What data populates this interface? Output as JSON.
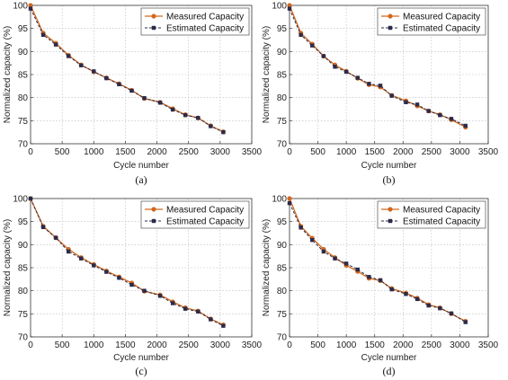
{
  "colors": {
    "measured": "#D2691E",
    "estimated": "#2B2B4B",
    "grid": "#B8B8B8"
  },
  "chart_data": [
    {
      "type": "line",
      "panel_label": "(a)",
      "xlabel": "Cycle number",
      "ylabel": "Normalized capacity (%)",
      "xlim": [
        0,
        3500
      ],
      "ylim": [
        70,
        100
      ],
      "xticks": [
        0,
        500,
        1000,
        1500,
        2000,
        2500,
        3000,
        3500
      ],
      "yticks": [
        70,
        75,
        80,
        85,
        90,
        95,
        100
      ],
      "grid": true,
      "legend": "top-right",
      "series": [
        {
          "name": "Measured Capacity",
          "marker": "circle",
          "linestyle": "solid",
          "x": [
            0,
            200,
            400,
            600,
            800,
            1000,
            1200,
            1400,
            1600,
            1800,
            2050,
            2250,
            2450,
            2650,
            2850,
            3050
          ],
          "y": [
            100,
            94,
            91.8,
            89.2,
            87.1,
            85.6,
            84.3,
            83,
            81.6,
            79.8,
            79,
            77.6,
            76.3,
            75.6,
            73.9,
            72.6
          ]
        },
        {
          "name": "Estimated Capacity",
          "marker": "square",
          "linestyle": "dashed",
          "x": [
            0,
            200,
            400,
            600,
            800,
            1000,
            1200,
            1400,
            1600,
            1800,
            2050,
            2250,
            2450,
            2650,
            2850,
            3050
          ],
          "y": [
            99.3,
            93.6,
            91.5,
            89,
            87,
            85.7,
            84.2,
            82.9,
            81.5,
            79.9,
            78.9,
            77.4,
            76.2,
            75.6,
            73.8,
            72.5
          ]
        }
      ]
    },
    {
      "type": "line",
      "panel_label": "(b)",
      "xlabel": "Cycle number",
      "ylabel": "Normalized capacity (%)",
      "xlim": [
        0,
        3500
      ],
      "ylim": [
        70,
        100
      ],
      "xticks": [
        0,
        500,
        1000,
        1500,
        2000,
        2500,
        3000,
        3500
      ],
      "yticks": [
        70,
        75,
        80,
        85,
        90,
        95,
        100
      ],
      "grid": true,
      "legend": "top-right",
      "series": [
        {
          "name": "Measured Capacity",
          "marker": "circle",
          "linestyle": "solid",
          "x": [
            0,
            200,
            400,
            600,
            800,
            1000,
            1200,
            1400,
            1600,
            1800,
            2050,
            2250,
            2450,
            2650,
            2850,
            3100
          ],
          "y": [
            100,
            94,
            91.6,
            89,
            87.1,
            85.7,
            84.2,
            82.8,
            82.3,
            80.5,
            79.3,
            78.2,
            77.1,
            76.3,
            75.2,
            73.6
          ]
        },
        {
          "name": "Estimated Capacity",
          "marker": "square",
          "linestyle": "dashed",
          "x": [
            0,
            200,
            400,
            600,
            800,
            1000,
            1200,
            1400,
            1600,
            1800,
            2050,
            2250,
            2450,
            2650,
            2850,
            3100
          ],
          "y": [
            99.3,
            93.6,
            91.3,
            89,
            86.7,
            85.6,
            84.3,
            83,
            82.6,
            80.4,
            79,
            78.5,
            77.1,
            76.2,
            75.4,
            73.9
          ]
        }
      ]
    },
    {
      "type": "line",
      "panel_label": "(c)",
      "xlabel": "Cycle number",
      "ylabel": "Normalized capacity (%)",
      "xlim": [
        0,
        3500
      ],
      "ylim": [
        70,
        100
      ],
      "xticks": [
        0,
        500,
        1000,
        1500,
        2000,
        2500,
        3000,
        3500
      ],
      "yticks": [
        70,
        75,
        80,
        85,
        90,
        95,
        100
      ],
      "grid": true,
      "legend": "top-right",
      "series": [
        {
          "name": "Measured Capacity",
          "marker": "circle",
          "linestyle": "solid",
          "x": [
            0,
            200,
            400,
            600,
            800,
            1000,
            1200,
            1400,
            1600,
            1800,
            2050,
            2250,
            2450,
            2650,
            2850,
            3050
          ],
          "y": [
            100,
            94,
            91.5,
            89,
            87.2,
            85.7,
            84.3,
            83,
            81.7,
            79.9,
            79.1,
            77.6,
            76.3,
            75.6,
            73.9,
            72.6
          ]
        },
        {
          "name": "Estimated Capacity",
          "marker": "square",
          "linestyle": "dashed",
          "x": [
            0,
            200,
            400,
            600,
            800,
            1000,
            1200,
            1400,
            1600,
            1800,
            2050,
            2250,
            2450,
            2650,
            2850,
            3050
          ],
          "y": [
            100,
            93.8,
            91.5,
            88.5,
            87,
            85.5,
            84.1,
            82.8,
            81.3,
            80,
            78.9,
            77.3,
            76.1,
            75.5,
            73.8,
            72.4
          ]
        }
      ]
    },
    {
      "type": "line",
      "panel_label": "(d)",
      "xlabel": "Cycle number",
      "ylabel": "Normalized capacity (%)",
      "xlim": [
        0,
        3500
      ],
      "ylim": [
        70,
        100
      ],
      "xticks": [
        0,
        500,
        1000,
        1500,
        2000,
        2500,
        3000,
        3500
      ],
      "yticks": [
        70,
        75,
        80,
        85,
        90,
        95,
        100
      ],
      "grid": true,
      "legend": "top-right",
      "series": [
        {
          "name": "Measured Capacity",
          "marker": "circle",
          "linestyle": "solid",
          "x": [
            0,
            200,
            400,
            600,
            800,
            1000,
            1200,
            1400,
            1600,
            1800,
            2050,
            2250,
            2450,
            2650,
            2850,
            3100
          ],
          "y": [
            100,
            94,
            91.4,
            89,
            87.2,
            85.5,
            84.2,
            82.7,
            82.2,
            80.5,
            79.5,
            78.4,
            77,
            76.3,
            75,
            73.4
          ]
        },
        {
          "name": "Estimated Capacity",
          "marker": "square",
          "linestyle": "dashed",
          "x": [
            0,
            200,
            400,
            600,
            800,
            1000,
            1200,
            1400,
            1600,
            1800,
            2050,
            2250,
            2450,
            2650,
            2850,
            3100
          ],
          "y": [
            99,
            93.7,
            91,
            88.5,
            87,
            85.9,
            84.6,
            83,
            82.3,
            80.3,
            79.3,
            78.2,
            76.8,
            76.2,
            75.1,
            73.2
          ]
        }
      ]
    }
  ]
}
